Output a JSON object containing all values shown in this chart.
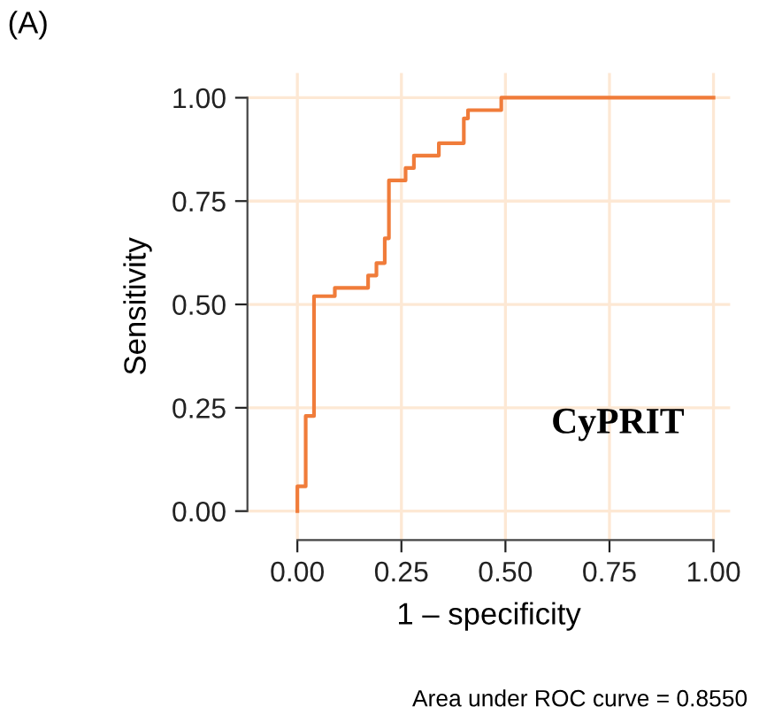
{
  "chart_data": {
    "type": "step",
    "title": "(A)",
    "xlabel": "1 – specificity",
    "ylabel": "Sensitivity",
    "x": [
      0,
      0,
      0.02,
      0.04,
      0.09,
      0.17,
      0.19,
      0.21,
      0.22,
      0.26,
      0.28,
      0.34,
      0.4,
      0.41,
      0.49,
      1.0
    ],
    "series": [
      {
        "color": "#f07c3a",
        "values": [
          0,
          0.06,
          0.23,
          0.52,
          0.54,
          0.57,
          0.6,
          0.66,
          0.8,
          0.83,
          0.86,
          0.89,
          0.95,
          0.97,
          1.0,
          1.0
        ]
      }
    ],
    "xlim": [
      -0.12,
      1.04
    ],
    "ylim": [
      -0.07,
      1.06
    ],
    "xticks": [
      {
        "value": 0,
        "label": "0.00"
      },
      {
        "value": 0.25,
        "label": "0.25"
      },
      {
        "value": 0.5,
        "label": "0.50"
      },
      {
        "value": 0.75,
        "label": "0.75"
      },
      {
        "value": 1,
        "label": "1.00"
      }
    ],
    "yticks": [
      {
        "value": 0,
        "label": "0.00"
      },
      {
        "value": 0.25,
        "label": "0.25"
      },
      {
        "value": 0.5,
        "label": "0.50"
      },
      {
        "value": 0.75,
        "label": "0.75"
      },
      {
        "value": 1,
        "label": "1.00"
      }
    ],
    "grid": true,
    "legend": false,
    "annotations": [
      "CyPRIT",
      "Area under ROC curve = 0.8550"
    ]
  }
}
